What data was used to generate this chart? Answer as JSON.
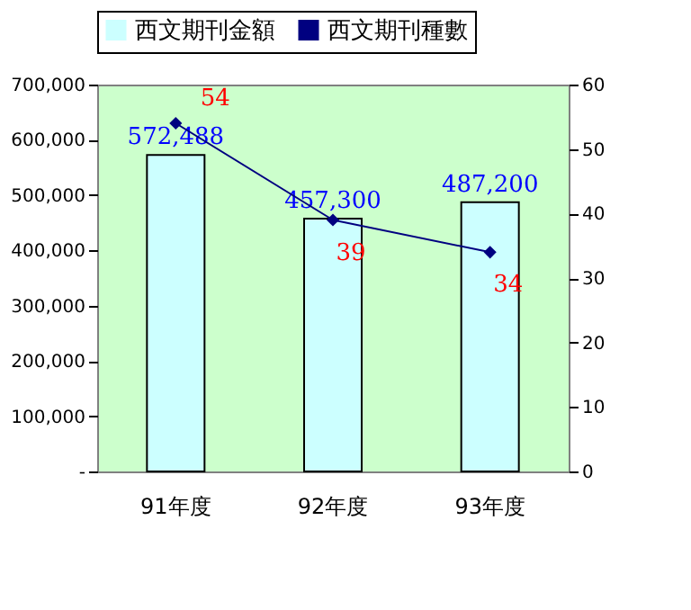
{
  "chart_data": {
    "type": "bar",
    "categories": [
      "91年度",
      "92年度",
      "93年度"
    ],
    "series": [
      {
        "name": "西文期刊金額",
        "color": "#ccffff",
        "values": [
          572488,
          457300,
          487200
        ],
        "value_labels": [
          "572,488",
          "457,300",
          "487,200"
        ]
      },
      {
        "name": "西文期刊種數",
        "type": "line",
        "axis": "y2",
        "color": "#000080",
        "values": [
          54,
          39,
          34
        ]
      }
    ],
    "ylim": [
      0,
      700000
    ],
    "yticks": [
      {
        "value": 0,
        "label": "-"
      },
      {
        "value": 100000,
        "label": "100,000"
      },
      {
        "value": 200000,
        "label": "200,000"
      },
      {
        "value": 300000,
        "label": "300,000"
      },
      {
        "value": 400000,
        "label": "400,000"
      },
      {
        "value": 500000,
        "label": "500,000"
      },
      {
        "value": 600000,
        "label": "600,000"
      },
      {
        "value": 700000,
        "label": "700,000"
      }
    ],
    "y2lim": [
      0,
      60
    ],
    "y2ticks": [
      0,
      10,
      20,
      30,
      40,
      50,
      60
    ],
    "data_labels": true,
    "marker": "diamond",
    "legend": "top",
    "grid": false
  }
}
